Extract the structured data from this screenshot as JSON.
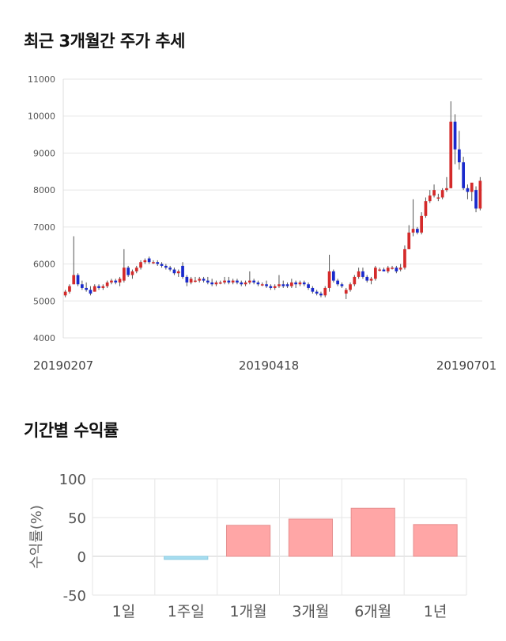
{
  "section_titles": {
    "price_trend": "최근 3개월간 주가 추세",
    "returns": "기간별 수익률"
  },
  "colors": {
    "up": "#d42a2a",
    "down": "#1a2acc",
    "positive_bar": "#ffa6a6",
    "negative_bar": "#a6ddf0",
    "grid": "#e6e6e6"
  },
  "chart_data": [
    {
      "type": "candlestick",
      "title": "최근 3개월간 주가 추세",
      "ylim": [
        4000,
        11000
      ],
      "yticks": [
        "11000",
        "10000",
        "9000",
        "8000",
        "7000",
        "6000",
        "5000",
        "4000"
      ],
      "xtick_labels": [
        "20190207",
        "20190418",
        "20190701"
      ],
      "grid": true,
      "ohlc": [
        [
          5150,
          5300,
          5100,
          5250
        ],
        [
          5250,
          5450,
          5200,
          5400
        ],
        [
          5450,
          6750,
          5450,
          5700
        ],
        [
          5700,
          5750,
          5400,
          5450
        ],
        [
          5450,
          5550,
          5300,
          5350
        ],
        [
          5350,
          5500,
          5250,
          5300
        ],
        [
          5300,
          5400,
          5150,
          5200
        ],
        [
          5250,
          5450,
          5250,
          5400
        ],
        [
          5400,
          5450,
          5300,
          5350
        ],
        [
          5350,
          5450,
          5300,
          5400
        ],
        [
          5400,
          5550,
          5350,
          5500
        ],
        [
          5500,
          5600,
          5450,
          5550
        ],
        [
          5550,
          5600,
          5450,
          5500
        ],
        [
          5500,
          5650,
          5400,
          5600
        ],
        [
          5550,
          6400,
          5500,
          5900
        ],
        [
          5900,
          5950,
          5650,
          5700
        ],
        [
          5700,
          5850,
          5600,
          5800
        ],
        [
          5800,
          5950,
          5750,
          5900
        ],
        [
          5900,
          6100,
          5850,
          6050
        ],
        [
          6050,
          6150,
          6000,
          6100
        ],
        [
          6150,
          6200,
          6000,
          6050
        ],
        [
          6050,
          6100,
          6000,
          6050
        ],
        [
          6050,
          6100,
          5950,
          6000
        ],
        [
          6000,
          6050,
          5900,
          5950
        ],
        [
          5950,
          6000,
          5850,
          5900
        ],
        [
          5900,
          5950,
          5800,
          5850
        ],
        [
          5850,
          5900,
          5700,
          5750
        ],
        [
          5750,
          5850,
          5650,
          5800
        ],
        [
          5950,
          6050,
          5600,
          5650
        ],
        [
          5650,
          5700,
          5400,
          5500
        ],
        [
          5500,
          5650,
          5450,
          5600
        ],
        [
          5550,
          5650,
          5500,
          5550
        ],
        [
          5550,
          5650,
          5500,
          5600
        ],
        [
          5600,
          5650,
          5500,
          5550
        ],
        [
          5550,
          5650,
          5450,
          5500
        ],
        [
          5500,
          5600,
          5400,
          5450
        ],
        [
          5450,
          5550,
          5400,
          5500
        ],
        [
          5500,
          5550,
          5450,
          5500
        ],
        [
          5500,
          5650,
          5450,
          5550
        ],
        [
          5550,
          5650,
          5450,
          5500
        ],
        [
          5500,
          5600,
          5450,
          5550
        ],
        [
          5550,
          5600,
          5450,
          5500
        ],
        [
          5500,
          5550,
          5400,
          5450
        ],
        [
          5450,
          5550,
          5400,
          5500
        ],
        [
          5500,
          5800,
          5450,
          5550
        ],
        [
          5550,
          5600,
          5450,
          5500
        ],
        [
          5500,
          5550,
          5400,
          5450
        ],
        [
          5450,
          5500,
          5400,
          5450
        ],
        [
          5450,
          5550,
          5350,
          5400
        ],
        [
          5400,
          5450,
          5300,
          5350
        ],
        [
          5350,
          5450,
          5300,
          5400
        ],
        [
          5400,
          5700,
          5350,
          5450
        ],
        [
          5450,
          5550,
          5350,
          5400
        ],
        [
          5450,
          5500,
          5350,
          5400
        ],
        [
          5400,
          5600,
          5350,
          5500
        ],
        [
          5500,
          5550,
          5350,
          5450
        ],
        [
          5450,
          5550,
          5400,
          5500
        ],
        [
          5500,
          5550,
          5400,
          5450
        ],
        [
          5450,
          5500,
          5300,
          5350
        ],
        [
          5350,
          5400,
          5200,
          5250
        ],
        [
          5250,
          5300,
          5150,
          5200
        ],
        [
          5200,
          5250,
          5100,
          5150
        ],
        [
          5150,
          5400,
          5100,
          5350
        ],
        [
          5350,
          6250,
          5250,
          5800
        ],
        [
          5800,
          5850,
          5500,
          5550
        ],
        [
          5550,
          5600,
          5400,
          5450
        ],
        [
          5450,
          5500,
          5350,
          5400
        ],
        [
          5200,
          5350,
          5050,
          5300
        ],
        [
          5300,
          5500,
          5250,
          5450
        ],
        [
          5450,
          5700,
          5400,
          5650
        ],
        [
          5650,
          5900,
          5600,
          5800
        ],
        [
          5800,
          5900,
          5600,
          5650
        ],
        [
          5650,
          5700,
          5500,
          5550
        ],
        [
          5550,
          5650,
          5450,
          5600
        ],
        [
          5600,
          5950,
          5550,
          5900
        ],
        [
          5850,
          5900,
          5800,
          5850
        ],
        [
          5850,
          5900,
          5800,
          5800
        ],
        [
          5800,
          5950,
          5750,
          5900
        ],
        [
          5900,
          5950,
          5850,
          5900
        ],
        [
          5900,
          5950,
          5750,
          5800
        ],
        [
          5850,
          6000,
          5800,
          5900
        ],
        [
          5900,
          6500,
          5850,
          6400
        ],
        [
          6400,
          7050,
          6400,
          6850
        ],
        [
          6850,
          7750,
          6750,
          6950
        ],
        [
          6950,
          7000,
          6800,
          6850
        ],
        [
          6850,
          7400,
          6800,
          7300
        ],
        [
          7300,
          7800,
          7250,
          7700
        ],
        [
          7700,
          8000,
          7650,
          7850
        ],
        [
          7850,
          8150,
          7800,
          8000
        ],
        [
          7800,
          7900,
          7700,
          7800
        ],
        [
          7800,
          8050,
          7750,
          8000
        ],
        [
          8000,
          8350,
          7950,
          8050
        ],
        [
          8050,
          10400,
          8050,
          9850
        ],
        [
          9850,
          10050,
          8700,
          9100
        ],
        [
          9100,
          9600,
          8550,
          8750
        ],
        [
          8750,
          8900,
          8000,
          8050
        ],
        [
          8050,
          8150,
          7750,
          7950
        ],
        [
          7950,
          8150,
          7700,
          8200
        ],
        [
          8000,
          8100,
          7400,
          7500
        ],
        [
          7500,
          8350,
          7450,
          8250
        ]
      ]
    },
    {
      "type": "bar",
      "categories": [
        "1일",
        "1주일",
        "1개월",
        "3개월",
        "6개월",
        "1년"
      ],
      "values": [
        0,
        -4,
        40,
        48,
        62,
        41
      ],
      "ylabel": "수익률(%)",
      "ylim": [
        -50,
        100
      ],
      "yticks": [
        "100",
        "50",
        "0",
        "-50"
      ],
      "grid": true
    }
  ]
}
